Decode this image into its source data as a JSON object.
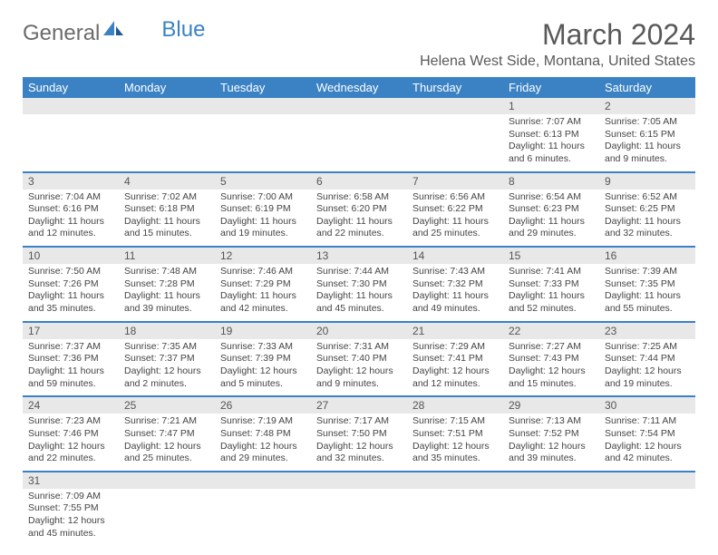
{
  "logo": {
    "general": "General",
    "blue": "Blue"
  },
  "title": "March 2024",
  "location": "Helena West Side, Montana, United States",
  "colors": {
    "brand": "#3b82c4",
    "text": "#595959",
    "grey_row": "#e8e8e8"
  },
  "day_headers": [
    "Sunday",
    "Monday",
    "Tuesday",
    "Wednesday",
    "Thursday",
    "Friday",
    "Saturday"
  ],
  "weeks": [
    {
      "dates": [
        "",
        "",
        "",
        "",
        "",
        "1",
        "2"
      ],
      "cells": [
        "",
        "",
        "",
        "",
        "",
        "Sunrise: 7:07 AM\nSunset: 6:13 PM\nDaylight: 11 hours\nand 6 minutes.",
        "Sunrise: 7:05 AM\nSunset: 6:15 PM\nDaylight: 11 hours\nand 9 minutes."
      ]
    },
    {
      "dates": [
        "3",
        "4",
        "5",
        "6",
        "7",
        "8",
        "9"
      ],
      "cells": [
        "Sunrise: 7:04 AM\nSunset: 6:16 PM\nDaylight: 11 hours\nand 12 minutes.",
        "Sunrise: 7:02 AM\nSunset: 6:18 PM\nDaylight: 11 hours\nand 15 minutes.",
        "Sunrise: 7:00 AM\nSunset: 6:19 PM\nDaylight: 11 hours\nand 19 minutes.",
        "Sunrise: 6:58 AM\nSunset: 6:20 PM\nDaylight: 11 hours\nand 22 minutes.",
        "Sunrise: 6:56 AM\nSunset: 6:22 PM\nDaylight: 11 hours\nand 25 minutes.",
        "Sunrise: 6:54 AM\nSunset: 6:23 PM\nDaylight: 11 hours\nand 29 minutes.",
        "Sunrise: 6:52 AM\nSunset: 6:25 PM\nDaylight: 11 hours\nand 32 minutes."
      ]
    },
    {
      "dates": [
        "10",
        "11",
        "12",
        "13",
        "14",
        "15",
        "16"
      ],
      "cells": [
        "Sunrise: 7:50 AM\nSunset: 7:26 PM\nDaylight: 11 hours\nand 35 minutes.",
        "Sunrise: 7:48 AM\nSunset: 7:28 PM\nDaylight: 11 hours\nand 39 minutes.",
        "Sunrise: 7:46 AM\nSunset: 7:29 PM\nDaylight: 11 hours\nand 42 minutes.",
        "Sunrise: 7:44 AM\nSunset: 7:30 PM\nDaylight: 11 hours\nand 45 minutes.",
        "Sunrise: 7:43 AM\nSunset: 7:32 PM\nDaylight: 11 hours\nand 49 minutes.",
        "Sunrise: 7:41 AM\nSunset: 7:33 PM\nDaylight: 11 hours\nand 52 minutes.",
        "Sunrise: 7:39 AM\nSunset: 7:35 PM\nDaylight: 11 hours\nand 55 minutes."
      ]
    },
    {
      "dates": [
        "17",
        "18",
        "19",
        "20",
        "21",
        "22",
        "23"
      ],
      "cells": [
        "Sunrise: 7:37 AM\nSunset: 7:36 PM\nDaylight: 11 hours\nand 59 minutes.",
        "Sunrise: 7:35 AM\nSunset: 7:37 PM\nDaylight: 12 hours\nand 2 minutes.",
        "Sunrise: 7:33 AM\nSunset: 7:39 PM\nDaylight: 12 hours\nand 5 minutes.",
        "Sunrise: 7:31 AM\nSunset: 7:40 PM\nDaylight: 12 hours\nand 9 minutes.",
        "Sunrise: 7:29 AM\nSunset: 7:41 PM\nDaylight: 12 hours\nand 12 minutes.",
        "Sunrise: 7:27 AM\nSunset: 7:43 PM\nDaylight: 12 hours\nand 15 minutes.",
        "Sunrise: 7:25 AM\nSunset: 7:44 PM\nDaylight: 12 hours\nand 19 minutes."
      ]
    },
    {
      "dates": [
        "24",
        "25",
        "26",
        "27",
        "28",
        "29",
        "30"
      ],
      "cells": [
        "Sunrise: 7:23 AM\nSunset: 7:46 PM\nDaylight: 12 hours\nand 22 minutes.",
        "Sunrise: 7:21 AM\nSunset: 7:47 PM\nDaylight: 12 hours\nand 25 minutes.",
        "Sunrise: 7:19 AM\nSunset: 7:48 PM\nDaylight: 12 hours\nand 29 minutes.",
        "Sunrise: 7:17 AM\nSunset: 7:50 PM\nDaylight: 12 hours\nand 32 minutes.",
        "Sunrise: 7:15 AM\nSunset: 7:51 PM\nDaylight: 12 hours\nand 35 minutes.",
        "Sunrise: 7:13 AM\nSunset: 7:52 PM\nDaylight: 12 hours\nand 39 minutes.",
        "Sunrise: 7:11 AM\nSunset: 7:54 PM\nDaylight: 12 hours\nand 42 minutes."
      ]
    },
    {
      "dates": [
        "31",
        "",
        "",
        "",
        "",
        "",
        ""
      ],
      "cells": [
        "Sunrise: 7:09 AM\nSunset: 7:55 PM\nDaylight: 12 hours\nand 45 minutes.",
        "",
        "",
        "",
        "",
        "",
        ""
      ]
    }
  ]
}
